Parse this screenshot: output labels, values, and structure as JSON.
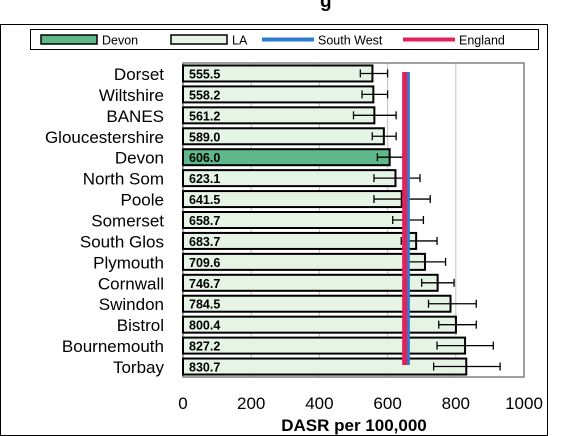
{
  "chart_data": {
    "type": "bar",
    "orientation": "horizontal",
    "title_fragment": "g",
    "xlabel": "DASR per 100,000",
    "xlim": [
      0,
      1000
    ],
    "xticks": [
      0,
      200,
      400,
      600,
      800,
      1000
    ],
    "grid": true,
    "legend_position": "top",
    "legend": [
      {
        "label": "Devon",
        "kind": "bar",
        "color": "#5fb88a"
      },
      {
        "label": "LA",
        "kind": "bar",
        "color": "#e6f4e6"
      },
      {
        "label": "South West",
        "kind": "line",
        "color": "#2e7bd4"
      },
      {
        "label": "England",
        "kind": "line",
        "color": "#e0245a"
      }
    ],
    "categories": [
      "Dorset",
      "Wiltshire",
      "BANES",
      "Gloucestershire",
      "Devon",
      "North Som",
      "Poole",
      "Somerset",
      "South Glos",
      "Plymouth",
      "Cornwall",
      "Swindon",
      "Bistrol",
      "Bournemouth",
      "Torbay"
    ],
    "values": [
      555.5,
      558.2,
      561.2,
      589.0,
      606.0,
      623.1,
      641.5,
      658.7,
      683.7,
      709.6,
      746.7,
      784.5,
      800.4,
      827.2,
      830.7
    ],
    "value_labels": [
      "555.5",
      "558.2",
      "561.2",
      "589.0",
      "606.0",
      "623.1",
      "641.5",
      "658.7",
      "683.7",
      "709.6",
      "746.7",
      "784.5",
      "800.4",
      "827.2",
      "830.7"
    ],
    "error_low": [
      520,
      525,
      500,
      555,
      570,
      560,
      560,
      615,
      640,
      660,
      700,
      720,
      750,
      745,
      735
    ],
    "error_high": [
      600,
      600,
      625,
      625,
      645,
      695,
      725,
      705,
      745,
      770,
      795,
      860,
      860,
      910,
      930
    ],
    "highlight": "Devon",
    "reference_lines": [
      {
        "name": "South West",
        "value": 658,
        "color": "#2e7bd4"
      },
      {
        "name": "England",
        "value": 650,
        "color": "#e0245a"
      }
    ]
  }
}
